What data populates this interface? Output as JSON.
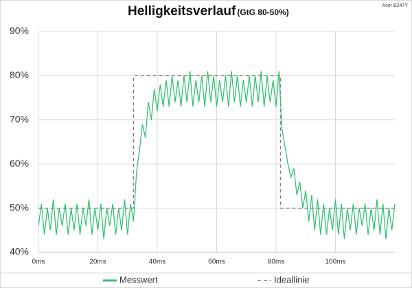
{
  "chart_data": {
    "type": "line",
    "title": "Helligkeitsverlauf",
    "subtitle": "(GtG 80-50%)",
    "annotation": "Acer B247Y",
    "xlim": [
      0,
      120
    ],
    "xticks": [
      {
        "value": 0,
        "label": "0ms"
      },
      {
        "value": 20,
        "label": "20ms"
      },
      {
        "value": 40,
        "label": "40ms"
      },
      {
        "value": 60,
        "label": "60ms"
      },
      {
        "value": 80,
        "label": "80ms"
      },
      {
        "value": 100,
        "label": "100ms"
      }
    ],
    "ylim": [
      40,
      90
    ],
    "yticks": [
      {
        "value": 40,
        "label": "40%"
      },
      {
        "value": 50,
        "label": "50%"
      },
      {
        "value": 60,
        "label": "60%"
      },
      {
        "value": 70,
        "label": "70%"
      },
      {
        "value": 80,
        "label": "80%"
      },
      {
        "value": 90,
        "label": "90%"
      }
    ],
    "grid": true,
    "legend": "bottom",
    "series": [
      {
        "name": "Messwert",
        "color": "#33c274",
        "dashed": false,
        "x": [
          0,
          1,
          2,
          3,
          4,
          5,
          6,
          7,
          8,
          9,
          10,
          11,
          12,
          13,
          14,
          15,
          16,
          17,
          18,
          19,
          20,
          21,
          22,
          23,
          24,
          25,
          26,
          27,
          28,
          29,
          30,
          31,
          32,
          33,
          34,
          35,
          36,
          37,
          38,
          39,
          40,
          41,
          42,
          43,
          44,
          45,
          46,
          47,
          48,
          49,
          50,
          51,
          52,
          53,
          54,
          55,
          56,
          57,
          58,
          59,
          60,
          61,
          62,
          63,
          64,
          65,
          66,
          67,
          68,
          69,
          70,
          71,
          72,
          73,
          74,
          75,
          76,
          77,
          78,
          79,
          80,
          81,
          82,
          83,
          84,
          85,
          86,
          87,
          88,
          89,
          90,
          91,
          92,
          93,
          94,
          95,
          96,
          97,
          98,
          99,
          100,
          101,
          102,
          103,
          104,
          105,
          106,
          107,
          108,
          109,
          110,
          111,
          112,
          113,
          114,
          115,
          116,
          117,
          118,
          119,
          120
        ],
        "values": [
          46,
          51,
          44,
          50,
          45,
          52,
          44,
          50,
          46,
          51,
          44,
          50,
          45,
          51,
          44,
          50,
          46,
          52,
          44,
          50,
          45,
          51,
          43,
          50,
          46,
          51,
          44,
          50,
          45,
          52,
          44,
          51,
          47,
          58,
          63,
          69,
          66,
          74,
          70,
          77,
          72,
          78,
          73,
          79,
          73,
          80,
          74,
          79,
          73,
          80,
          74,
          81,
          73,
          79,
          74,
          80,
          73,
          81,
          74,
          80,
          73,
          79,
          74,
          80,
          73,
          81,
          74,
          80,
          73,
          79,
          74,
          80,
          73,
          80,
          74,
          81,
          73,
          80,
          74,
          79,
          73,
          81,
          68,
          64,
          60,
          57,
          59,
          53,
          56,
          50,
          54,
          47,
          53,
          45,
          52,
          44,
          51,
          44,
          50,
          45,
          52,
          44,
          51,
          43,
          50,
          45,
          51,
          44,
          50,
          46,
          51,
          44,
          50,
          45,
          52,
          44,
          51,
          43,
          50,
          45,
          51
        ]
      },
      {
        "name": "Ideallinie",
        "color": "#808080",
        "dashed": true,
        "x": [
          0,
          32,
          32,
          81.5,
          81.5,
          120
        ],
        "values": [
          50,
          50,
          80,
          80,
          50,
          50
        ]
      }
    ]
  }
}
